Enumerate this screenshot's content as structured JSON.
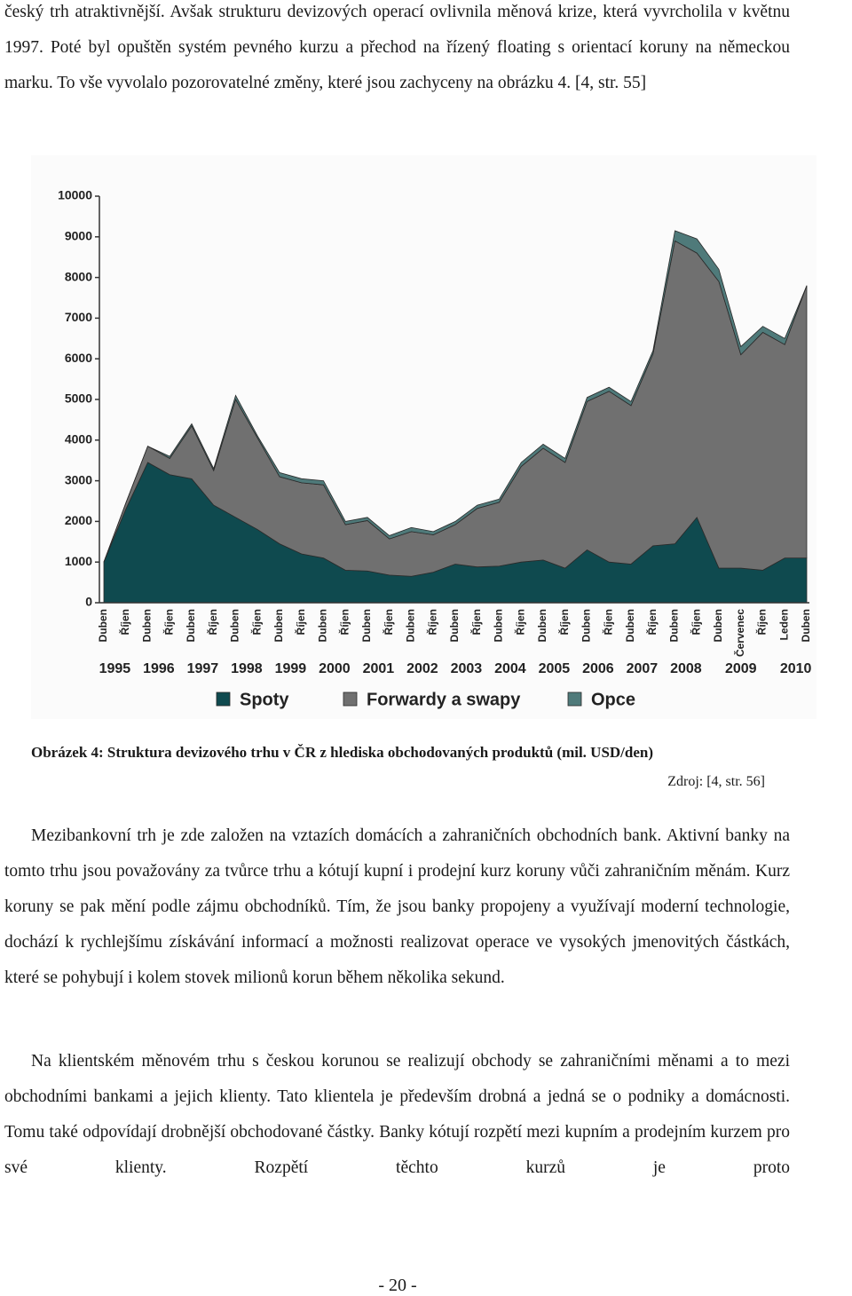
{
  "paragraphs": [
    "český trh atraktivnější. Avšak strukturu devizových operací ovlivnila měnová krize, která vyvrcholila v květnu 1997. Poté byl opuštěn systém pevného kurzu a přechod na řízený floating s orientací koruny na německou marku. To vše vyvolalo pozorovatelné změny, které jsou zachyceny na obrázku 4. [4, str. 55]",
    "Mezibankovní trh je zde založen na vztazích domácích a zahraničních obchodních bank. Aktivní banky na tomto trhu jsou považovány za tvůrce trhu a kótují kupní i prodejní kurz koruny vůči zahraničním měnám. Kurz koruny se pak mění podle zájmu obchodníků. Tím, že jsou banky propojeny a využívají moderní technologie, dochází k rychlejšímu získávání informací a možnosti realizovat operace ve vysokých jmenovitých částkách, které se pohybují i kolem stovek milionů korun během několika sekund.",
    "Na klientském měnovém trhu s českou korunou se realizují obchody se zahraničními měnami a to mezi obchodními bankami a jejich klienty. Tato klientela je především drobná a jedná se o podniky a domácnosti. Tomu také odpovídají drobnější obchodované částky. Banky kótují rozpětí mezi kupním a prodejním kurzem pro své klienty. Rozpětí těchto kurzů je proto"
  ],
  "figure": {
    "caption": "Obrázek 4: Struktura devizového trhu v ČR z hlediska obchodovaných produktů (mil. USD/den)",
    "source": "Zdroj: [4, str. 56]"
  },
  "page_number": "- 20 -",
  "chart_data": {
    "type": "stacked_area",
    "categories": [
      "Duben",
      "Říjen",
      "Duben",
      "Říjen",
      "Duben",
      "Říjen",
      "Duben",
      "Říjen",
      "Duben",
      "Říjen",
      "Duben",
      "Říjen",
      "Duben",
      "Říjen",
      "Duben",
      "Říjen",
      "Duben",
      "Říjen",
      "Duben",
      "Říjen",
      "Duben",
      "Říjen",
      "Duben",
      "Říjen",
      "Duben",
      "Říjen",
      "Duben",
      "Říjen",
      "Duben",
      "Červenec",
      "Říjen",
      "Leden",
      "Duben"
    ],
    "year_labels": [
      "1995",
      "1996",
      "1997",
      "1998",
      "1999",
      "2000",
      "2001",
      "2002",
      "2003",
      "2004",
      "2005",
      "2006",
      "2007",
      "2008",
      "2009",
      "2010"
    ],
    "series": [
      {
        "name": "Spoty",
        "color": "#0f4a4f",
        "values": [
          1000,
          2300,
          3450,
          3150,
          3050,
          2400,
          2100,
          1800,
          1450,
          1200,
          1100,
          800,
          780,
          680,
          650,
          750,
          950,
          880,
          900,
          1000,
          1050,
          850,
          1300,
          1000,
          950,
          1400,
          1450,
          2100,
          850,
          850,
          800,
          1100,
          1100
        ]
      },
      {
        "name": "Forwardy a swapy",
        "color": "#707070",
        "values": [
          0,
          150,
          400,
          400,
          1300,
          850,
          2900,
          2250,
          1650,
          1750,
          1800,
          1120,
          1240,
          890,
          1100,
          920,
          970,
          1440,
          1570,
          2350,
          2750,
          2600,
          3650,
          4200,
          3900,
          4720,
          7450,
          6500,
          7050,
          5250,
          5850,
          5250,
          6700
        ]
      },
      {
        "name": "Opce",
        "color": "#4f7a7a",
        "values": [
          0,
          0,
          0,
          50,
          50,
          50,
          100,
          50,
          100,
          100,
          100,
          80,
          80,
          80,
          100,
          80,
          80,
          80,
          80,
          100,
          100,
          100,
          100,
          100,
          100,
          80,
          250,
          350,
          300,
          200,
          150,
          150,
          0
        ]
      }
    ],
    "ylim": [
      0,
      10000
    ],
    "yticks": [
      0,
      1000,
      2000,
      3000,
      4000,
      5000,
      6000,
      7000,
      8000,
      9000,
      10000
    ],
    "legend": "bottom"
  }
}
